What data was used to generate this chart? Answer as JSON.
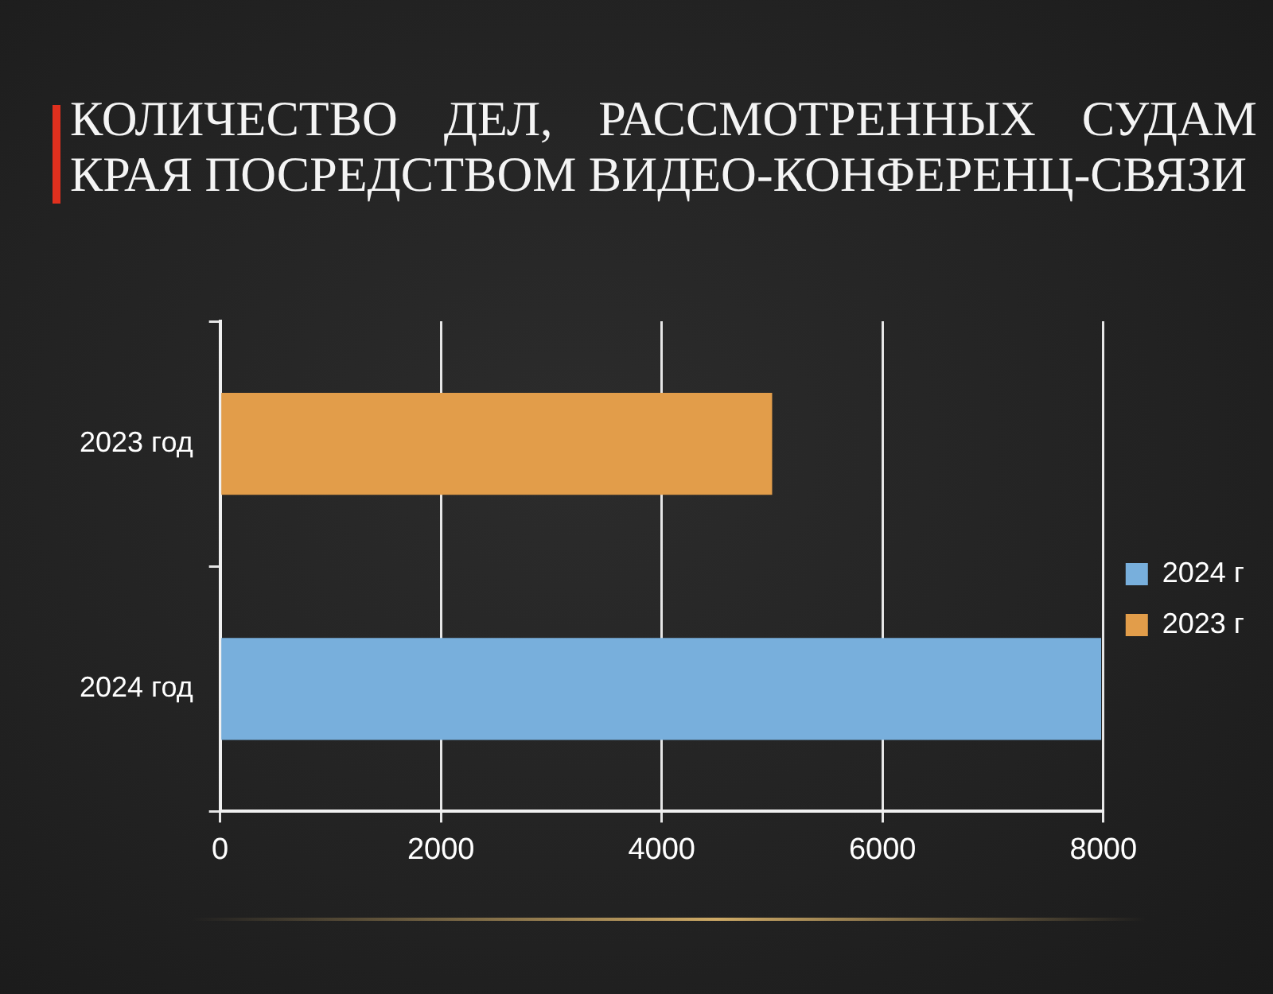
{
  "chart_data": {
    "type": "bar",
    "orientation": "horizontal",
    "title": "КОЛИЧЕСТВО ДЕЛ, РАССМОТРЕННЫХ СУДАМ КРАЯ ПОСРЕДСТВОМ ВИДЕО-КОНФЕРЕНЦ-СВЯЗИ",
    "categories": [
      "2023 год",
      "2024 год"
    ],
    "series": [
      {
        "name": "2024 г",
        "color": "#78afdc",
        "values": [
          null,
          7980
        ]
      },
      {
        "name": "2023 г",
        "color": "#e29d4a",
        "values": [
          5000,
          null
        ]
      }
    ],
    "xlim": [
      0,
      8000
    ],
    "xticks": [
      0,
      2000,
      4000,
      6000,
      8000
    ],
    "grid": "x",
    "legend": "right"
  }
}
